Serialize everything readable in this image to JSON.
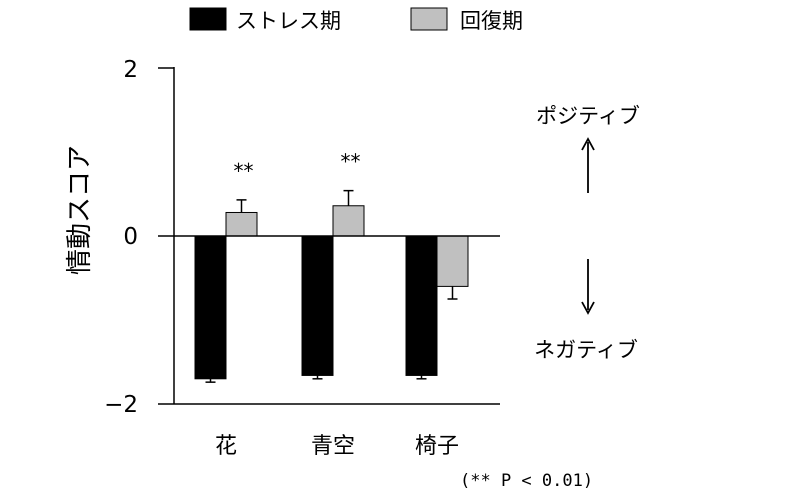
{
  "chart_data": {
    "type": "bar",
    "categories": [
      "花",
      "青空",
      "椅子"
    ],
    "series": [
      {
        "name": "ストレス期",
        "color": "#000000",
        "values": [
          -1.7,
          -1.66,
          -1.66
        ],
        "errors": [
          0.04,
          0.04,
          0.04
        ]
      },
      {
        "name": "回復期",
        "color": "#c0c0c0",
        "values": [
          0.28,
          0.36,
          -0.6
        ],
        "errors": [
          0.15,
          0.18,
          0.15
        ]
      }
    ],
    "significance": [
      "**",
      "**",
      ""
    ],
    "ylabel": "情動スコア",
    "ylim": [
      -2,
      2
    ],
    "yticks": [
      "−2",
      "0",
      "2"
    ],
    "ytick_values": [
      -2,
      0,
      2
    ],
    "legend_position": "top",
    "grid": false,
    "annotations": {
      "positive": "ポジティブ",
      "negative": "ネガティブ",
      "footnote": "(** P < 0.01)"
    },
    "arrow_icons": [
      "arrow-up-icon",
      "arrow-down-icon"
    ]
  }
}
